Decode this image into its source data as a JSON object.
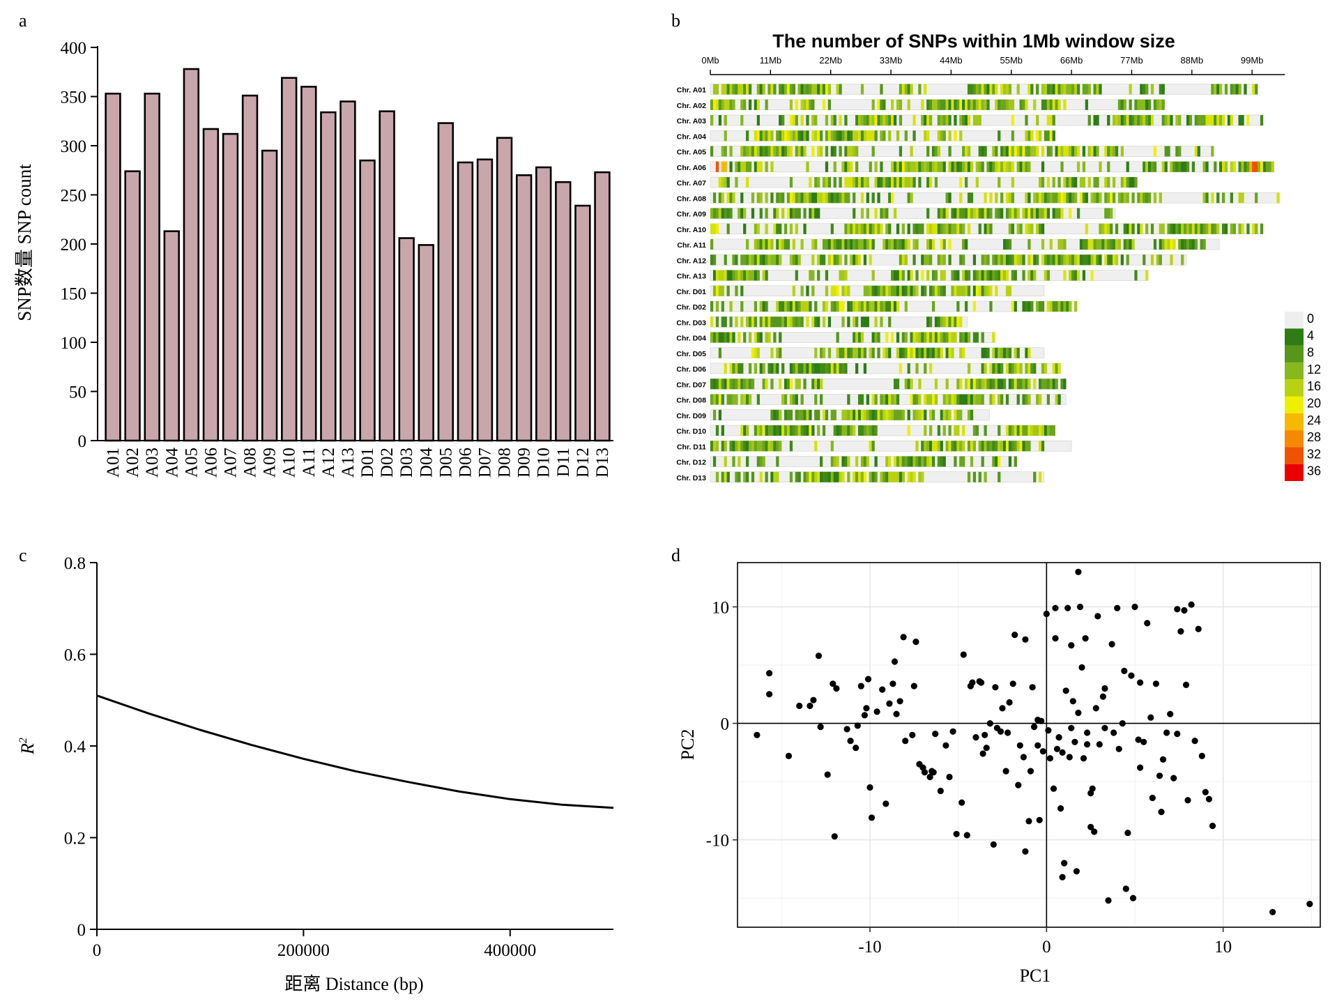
{
  "panel_labels": {
    "a": "a",
    "b": "b",
    "c": "c",
    "d": "d"
  },
  "chart_data": [
    {
      "panel": "a",
      "type": "bar",
      "ylabel": "SNP数量 SNP count",
      "ylim": [
        0,
        400
      ],
      "yticks": [
        0,
        50,
        100,
        150,
        200,
        250,
        300,
        350,
        400
      ],
      "categories": [
        "A01",
        "A02",
        "A03",
        "A04",
        "A05",
        "A06",
        "A07",
        "A08",
        "A09",
        "A10",
        "A11",
        "A12",
        "A13",
        "D01",
        "D02",
        "D03",
        "D04",
        "D05",
        "D06",
        "D07",
        "D08",
        "D09",
        "D10",
        "D11",
        "D12",
        "D13"
      ],
      "values": [
        353,
        274,
        353,
        213,
        378,
        317,
        312,
        351,
        295,
        369,
        360,
        334,
        345,
        285,
        335,
        206,
        199,
        323,
        283,
        286,
        308,
        270,
        278,
        263,
        239,
        273
      ],
      "bar_color": "#c9a6ac",
      "grid": false
    },
    {
      "panel": "b",
      "type": "heatmap",
      "title": "The number of SNPs within 1Mb window size",
      "x_ticks": [
        "0Mb",
        "11Mb",
        "22Mb",
        "33Mb",
        "44Mb",
        "55Mb",
        "66Mb",
        "77Mb",
        "88Mb",
        "99Mb"
      ],
      "x_tick_values": [
        0,
        11,
        22,
        33,
        44,
        55,
        66,
        77,
        88,
        99
      ],
      "chromosomes": [
        "Chr. A01",
        "Chr. A02",
        "Chr. A03",
        "Chr. A04",
        "Chr. A05",
        "Chr. A06",
        "Chr. A07",
        "Chr. A08",
        "Chr. A09",
        "Chr. A10",
        "Chr. A11",
        "Chr. A12",
        "Chr. A13",
        "Chr. D01",
        "Chr. D02",
        "Chr. D03",
        "Chr. D04",
        "Chr. D05",
        "Chr. D06",
        "Chr. D07",
        "Chr. D08",
        "Chr. D09",
        "Chr. D10",
        "Chr. D11",
        "Chr. D12",
        "Chr. D13"
      ],
      "lengths_mb": [
        100,
        83,
        101,
        63,
        92,
        103,
        78,
        104,
        74,
        101,
        93,
        87,
        80,
        61,
        67,
        47,
        52,
        61,
        64,
        65,
        65,
        51,
        63,
        66,
        56,
        61
      ],
      "legend_values": [
        "0",
        "4",
        "8",
        "12",
        "16",
        "20",
        "24",
        "28",
        "32",
        "36"
      ],
      "legend_colors": [
        "#eeeeee",
        "#2e7d14",
        "#55961b",
        "#87b81d",
        "#b8d211",
        "#eff000",
        "#f7b800",
        "#f58a00",
        "#ef5200",
        "#ea0000"
      ]
    },
    {
      "panel": "c",
      "type": "line",
      "xlabel": "距离 Distance (bp)",
      "ylabel": "R²",
      "xlim": [
        0,
        500000
      ],
      "ylim": [
        0,
        0.8
      ],
      "xticks": [
        0,
        200000,
        400000
      ],
      "yticks": [
        0,
        0.2,
        0.4,
        0.6,
        0.8
      ],
      "x": [
        0,
        50000,
        100000,
        150000,
        200000,
        250000,
        300000,
        350000,
        400000,
        450000,
        500000
      ],
      "y": [
        0.51,
        0.471,
        0.435,
        0.402,
        0.372,
        0.345,
        0.322,
        0.301,
        0.284,
        0.272,
        0.265
      ]
    },
    {
      "panel": "d",
      "type": "scatter",
      "xlabel": "PC1",
      "ylabel": "PC2",
      "xlim": [
        -17.5,
        15.5
      ],
      "ylim": [
        -17.5,
        13.8
      ],
      "xticks": [
        -10,
        0,
        10
      ],
      "yticks": [
        -10,
        0,
        10
      ],
      "grid": true,
      "points": [
        [
          -16.4,
          -1.0
        ],
        [
          -15.7,
          4.3
        ],
        [
          -15.7,
          2.5
        ],
        [
          -14.6,
          -2.8
        ],
        [
          -14.0,
          1.5
        ],
        [
          -13.4,
          1.5
        ],
        [
          -13.2,
          2.0
        ],
        [
          -12.9,
          5.8
        ],
        [
          -12.8,
          -0.3
        ],
        [
          -12.4,
          -4.4
        ],
        [
          -12.1,
          3.4
        ],
        [
          -11.9,
          3.0
        ],
        [
          -12.0,
          -9.7
        ],
        [
          -11.3,
          -0.5
        ],
        [
          -11.1,
          -1.5
        ],
        [
          -10.8,
          -2.1
        ],
        [
          -10.7,
          -0.2
        ],
        [
          -10.5,
          3.2
        ],
        [
          -10.3,
          0.7
        ],
        [
          -10.2,
          1.3
        ],
        [
          -10.1,
          3.8
        ],
        [
          -10.0,
          -5.5
        ],
        [
          -9.9,
          -8.1
        ],
        [
          -9.6,
          1.0
        ],
        [
          -9.3,
          2.9
        ],
        [
          -9.1,
          -6.9
        ],
        [
          -8.9,
          1.7
        ],
        [
          -8.7,
          3.4
        ],
        [
          -8.6,
          5.3
        ],
        [
          -8.5,
          0.8
        ],
        [
          -8.3,
          1.9
        ],
        [
          -8.1,
          7.4
        ],
        [
          -8.0,
          -1.5
        ],
        [
          -7.6,
          -1.0
        ],
        [
          -7.5,
          3.2
        ],
        [
          -7.4,
          7.0
        ],
        [
          -7.2,
          -3.5
        ],
        [
          -7.0,
          -3.8
        ],
        [
          -6.9,
          -4.2
        ],
        [
          -6.6,
          -4.6
        ],
        [
          -6.5,
          -4.1
        ],
        [
          -6.3,
          -0.9
        ],
        [
          -6.0,
          -5.8
        ],
        [
          -5.7,
          -1.9
        ],
        [
          -5.5,
          -4.6
        ],
        [
          -5.3,
          -0.7
        ],
        [
          -5.1,
          -9.5
        ],
        [
          -4.8,
          -6.8
        ],
        [
          -4.7,
          5.9
        ],
        [
          -4.5,
          -9.6
        ],
        [
          -4.3,
          3.2
        ],
        [
          -4.2,
          3.5
        ],
        [
          -4.0,
          -1.2
        ],
        [
          -3.8,
          3.6
        ],
        [
          -3.7,
          3.5
        ],
        [
          -3.5,
          -1.0
        ],
        [
          -3.4,
          -2.1
        ],
        [
          -3.2,
          0.0
        ],
        [
          -3.0,
          -10.4
        ],
        [
          -2.9,
          3.1
        ],
        [
          -2.8,
          -0.4
        ],
        [
          -2.6,
          -0.7
        ],
        [
          -2.5,
          1.3
        ],
        [
          -2.3,
          -4.1
        ],
        [
          -2.2,
          -0.8
        ],
        [
          -1.9,
          3.4
        ],
        [
          -1.8,
          7.6
        ],
        [
          -1.6,
          -5.3
        ],
        [
          -1.5,
          -1.9
        ],
        [
          -1.3,
          -2.9
        ],
        [
          -1.2,
          7.2
        ],
        [
          -1.0,
          -8.4
        ],
        [
          -0.9,
          -4.1
        ],
        [
          -0.8,
          3.1
        ],
        [
          -0.7,
          -0.3
        ],
        [
          -0.5,
          -1.9
        ],
        [
          -0.4,
          -8.3
        ],
        [
          -0.2,
          -2.4
        ],
        [
          0.0,
          9.4
        ],
        [
          0.1,
          -0.6
        ],
        [
          0.2,
          -3.0
        ],
        [
          0.4,
          -5.6
        ],
        [
          0.5,
          9.9
        ],
        [
          0.6,
          -2.2
        ],
        [
          0.7,
          -1.2
        ],
        [
          0.8,
          -7.3
        ],
        [
          0.9,
          -2.5
        ],
        [
          1.0,
          -12.0
        ],
        [
          1.1,
          2.8
        ],
        [
          1.2,
          9.9
        ],
        [
          1.3,
          -2.9
        ],
        [
          1.4,
          -0.4
        ],
        [
          1.5,
          1.9
        ],
        [
          1.6,
          -1.6
        ],
        [
          1.7,
          -12.7
        ],
        [
          1.8,
          13.0
        ],
        [
          1.9,
          10.0
        ],
        [
          2.0,
          4.8
        ],
        [
          2.1,
          -3.0
        ],
        [
          2.2,
          7.3
        ],
        [
          2.3,
          -1.8
        ],
        [
          2.5,
          -8.9
        ],
        [
          2.6,
          -5.6
        ],
        [
          2.7,
          -9.3
        ],
        [
          2.8,
          1.3
        ],
        [
          2.9,
          9.2
        ],
        [
          3.0,
          -1.8
        ],
        [
          3.2,
          2.3
        ],
        [
          3.3,
          -0.4
        ],
        [
          3.5,
          -15.2
        ],
        [
          3.7,
          6.8
        ],
        [
          3.8,
          -0.8
        ],
        [
          4.0,
          9.9
        ],
        [
          4.1,
          -2.2
        ],
        [
          4.3,
          0.0
        ],
        [
          4.5,
          -14.2
        ],
        [
          4.6,
          -9.4
        ],
        [
          4.8,
          4.1
        ],
        [
          4.9,
          -15.0
        ],
        [
          5.0,
          10.0
        ],
        [
          5.2,
          -1.4
        ],
        [
          5.3,
          3.5
        ],
        [
          5.5,
          -1.6
        ],
        [
          5.7,
          8.6
        ],
        [
          5.9,
          0.5
        ],
        [
          6.0,
          -6.4
        ],
        [
          6.2,
          3.4
        ],
        [
          6.4,
          -4.5
        ],
        [
          6.6,
          -3.1
        ],
        [
          6.8,
          -0.8
        ],
        [
          7.0,
          0.8
        ],
        [
          7.2,
          -4.7
        ],
        [
          7.4,
          9.8
        ],
        [
          7.6,
          7.9
        ],
        [
          7.8,
          9.7
        ],
        [
          8.0,
          -6.6
        ],
        [
          8.2,
          10.2
        ],
        [
          8.4,
          -1.5
        ],
        [
          8.6,
          8.1
        ],
        [
          8.8,
          -2.8
        ],
        [
          9.0,
          -5.9
        ],
        [
          9.2,
          -6.5
        ],
        [
          9.4,
          -8.8
        ],
        [
          12.8,
          -16.2
        ],
        [
          14.9,
          -15.5
        ],
        [
          0.5,
          7.3
        ],
        [
          -0.5,
          0.3
        ],
        [
          1.4,
          6.7
        ],
        [
          3.3,
          3.0
        ],
        [
          -2.1,
          1.8
        ],
        [
          6.5,
          -7.6
        ],
        [
          0.9,
          -13.2
        ],
        [
          -1.2,
          -11.0
        ],
        [
          2.5,
          -6.0
        ],
        [
          4.4,
          4.5
        ],
        [
          7.4,
          -0.9
        ],
        [
          -6.4,
          -4.2
        ],
        [
          5.3,
          -3.8
        ],
        [
          1.8,
          0.9
        ],
        [
          -3.6,
          -2.6
        ],
        [
          7.9,
          3.3
        ],
        [
          2.3,
          -0.8
        ],
        [
          -0.3,
          0.2
        ]
      ]
    }
  ]
}
